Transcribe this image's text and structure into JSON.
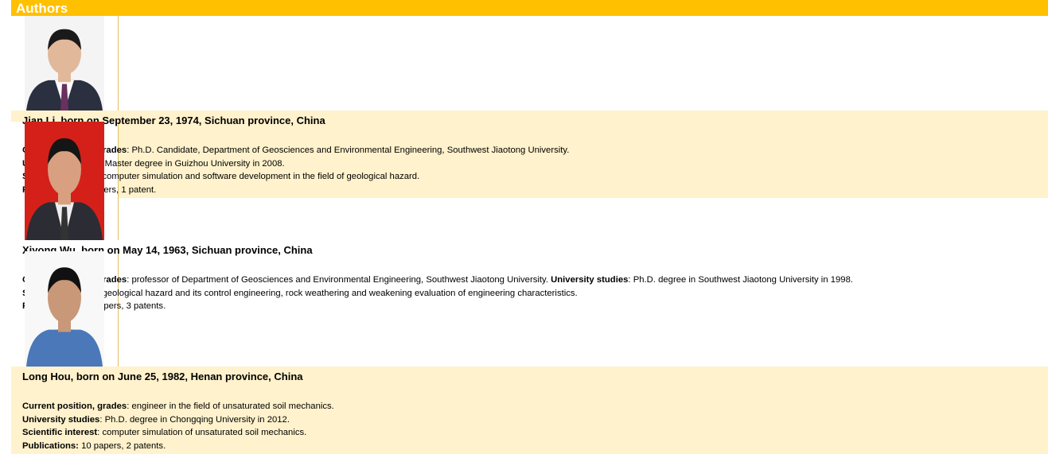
{
  "header": {
    "title": "Authors"
  },
  "authors": [
    {
      "name_line": "Jian Li, born on September 23, 1974, Sichuan province, China",
      "lines": [
        [
          {
            "label": "Current position, grades",
            "text": ": Ph.D. Candidate, Department of Geosciences and Environmental Engineering, Southwest Jiaotong University."
          }
        ],
        [
          {
            "label": "University studies",
            "text": ": Master degree in Guizhou University in 2008."
          }
        ],
        [
          {
            "label": "Scientific interest",
            "text": ": computer simulation and software development in the field of geological hazard."
          }
        ],
        [
          {
            "label": "Publications:",
            "text": " 5 papers, 1 patent."
          }
        ]
      ]
    },
    {
      "name_line": "Xiyong Wu, born on May 14, 1963, Sichuan province, China",
      "lines": [
        [
          {
            "label": "Current position, grades",
            "text": ": professor of Department of Geosciences and Environmental Engineering, Southwest Jiaotong University. "
          },
          {
            "label": "University studies",
            "text": ": Ph.D. degree in Southwest Jiaotong University in 1998."
          }
        ],
        [
          {
            "label": "Scientific interest",
            "text": ": geological hazard and its control engineering, rock weathering and weakening evaluation of engineering characteristics."
          }
        ],
        [
          {
            "label": "Publications:",
            "text": " 40 papers, 3 patents."
          }
        ]
      ]
    },
    {
      "name_line": "Long Hou, born on June 25, 1982, Henan province, China",
      "lines": [
        [
          {
            "label": "Current position, grades",
            "text": ": engineer in the field of unsaturated soil mechanics."
          }
        ],
        [
          {
            "label": "University studies",
            "text": ": Ph.D. degree in Chongqing University in 2012."
          }
        ],
        [
          {
            "label": "Scientific interest",
            "text": ": computer simulation of unsaturated soil mechanics."
          }
        ],
        [
          {
            "label": "Publications:",
            "text": " 10 papers, 2 patents."
          }
        ]
      ]
    }
  ]
}
